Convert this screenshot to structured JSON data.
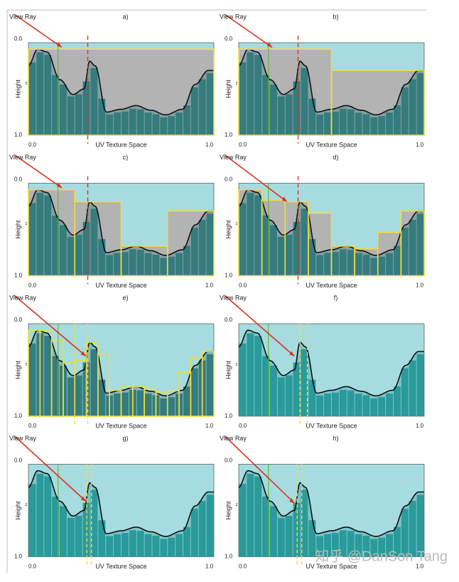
{
  "axes": {
    "view_ray": "View Ray",
    "y_top": "0.0",
    "y_bottom": "1.0",
    "y_label": "Height",
    "z_label": "z",
    "x_left": "0.0",
    "x_label": "UV Texture Space",
    "x_right": "1.0"
  },
  "panels": [
    {
      "label": "a)"
    },
    {
      "label": "b)"
    },
    {
      "label": "c)"
    },
    {
      "label": "d)"
    },
    {
      "label": "e)"
    },
    {
      "label": "f)"
    },
    {
      "label": "g)"
    },
    {
      "label": "h)"
    }
  ],
  "watermark": "知乎 @DanSon Tang"
}
